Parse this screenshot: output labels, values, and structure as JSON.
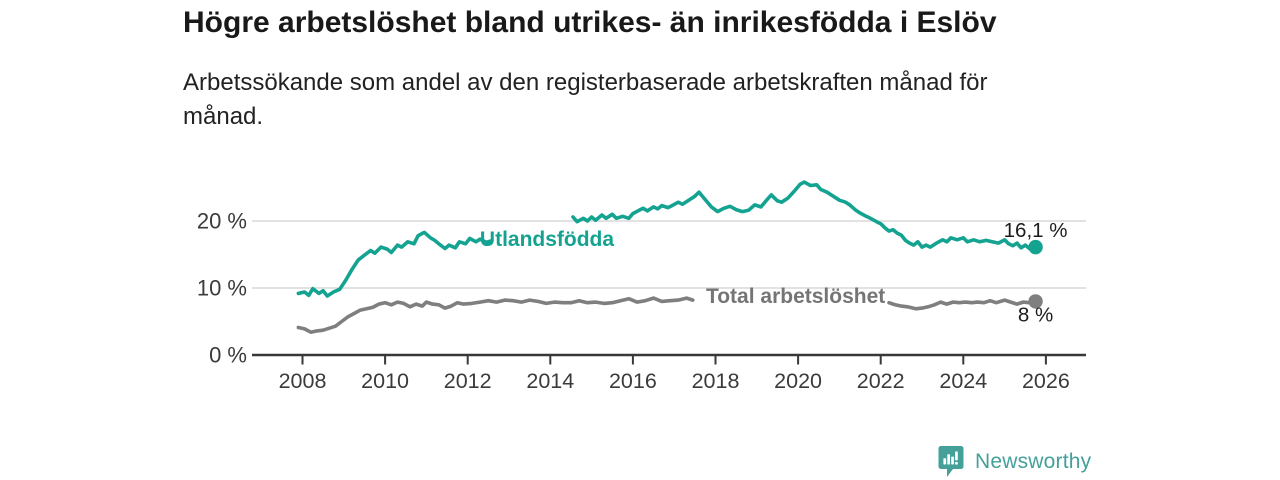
{
  "header": {
    "title": "Högre arbetslöshet bland utrikes- än inrikesfödda i Eslöv",
    "subtitle": "Arbetssökande som andel av den registerbaserade arbetskraften månad för månad."
  },
  "chart_data": {
    "type": "line",
    "title": "Högre arbetslöshet bland utrikes- än inrikesfödda i Eslöv",
    "xlabel": "",
    "ylabel": "",
    "xlim": [
      2006.8,
      2027.0
    ],
    "ylim": [
      0,
      27
    ],
    "grid": "horizontal",
    "legend_position": "inline-labels-on-lines",
    "x_axis": {
      "ticks": [
        2008,
        2010,
        2012,
        2014,
        2016,
        2018,
        2020,
        2022,
        2024,
        2026
      ]
    },
    "y_axis": {
      "ticks": [
        {
          "value": 0,
          "label": "0 %"
        },
        {
          "value": 10,
          "label": "10 %"
        },
        {
          "value": 20,
          "label": "20 %"
        }
      ]
    },
    "style": {
      "grid_color": "#d9d9d9",
      "axis_color": "#383838",
      "axis_text_color": "#3b3b3b",
      "value_label_color": "#1c1c1c",
      "background": "#ffffff"
    },
    "series": [
      {
        "id": "utlandsfodda",
        "name": "Utlandsfödda",
        "color": "#14a391",
        "end_value": 16.1,
        "end_label": "16,1 %",
        "end_label_position": "above",
        "label_anchor": {
          "year": 2013.92,
          "pct": 17.5
        },
        "segments": [
          [
            [
              2007.9,
              9.2
            ],
            [
              2008.05,
              9.4
            ],
            [
              2008.15,
              8.9
            ],
            [
              2008.25,
              9.9
            ],
            [
              2008.4,
              9.2
            ],
            [
              2008.5,
              9.6
            ],
            [
              2008.6,
              8.8
            ],
            [
              2008.75,
              9.4
            ],
            [
              2008.9,
              9.8
            ],
            [
              2009.05,
              11.2
            ],
            [
              2009.2,
              12.8
            ],
            [
              2009.35,
              14.2
            ],
            [
              2009.5,
              14.9
            ],
            [
              2009.65,
              15.6
            ],
            [
              2009.75,
              15.2
            ],
            [
              2009.9,
              16.1
            ],
            [
              2010.05,
              15.8
            ],
            [
              2010.15,
              15.3
            ],
            [
              2010.3,
              16.4
            ],
            [
              2010.4,
              16.1
            ],
            [
              2010.55,
              16.9
            ],
            [
              2010.7,
              16.6
            ],
            [
              2010.8,
              17.8
            ],
            [
              2010.95,
              18.3
            ],
            [
              2011.1,
              17.5
            ],
            [
              2011.2,
              17.1
            ],
            [
              2011.3,
              16.6
            ],
            [
              2011.45,
              15.9
            ],
            [
              2011.55,
              16.4
            ],
            [
              2011.7,
              16.0
            ],
            [
              2011.8,
              16.9
            ],
            [
              2011.95,
              16.6
            ],
            [
              2012.05,
              17.4
            ],
            [
              2012.2,
              16.9
            ],
            [
              2012.3,
              17.3
            ],
            [
              2012.45,
              16.8
            ],
            [
              2012.55,
              17.0
            ]
          ],
          [
            [
              2014.55,
              20.6
            ],
            [
              2014.65,
              19.9
            ],
            [
              2014.8,
              20.4
            ],
            [
              2014.9,
              20.0
            ],
            [
              2015.0,
              20.6
            ],
            [
              2015.1,
              20.1
            ],
            [
              2015.25,
              20.9
            ],
            [
              2015.35,
              20.4
            ],
            [
              2015.5,
              21.0
            ],
            [
              2015.6,
              20.4
            ],
            [
              2015.75,
              20.7
            ],
            [
              2015.9,
              20.4
            ],
            [
              2016.0,
              21.1
            ],
            [
              2016.15,
              21.6
            ],
            [
              2016.25,
              21.9
            ],
            [
              2016.35,
              21.5
            ],
            [
              2016.5,
              22.1
            ],
            [
              2016.6,
              21.8
            ],
            [
              2016.7,
              22.3
            ],
            [
              2016.85,
              22.0
            ],
            [
              2016.95,
              22.3
            ],
            [
              2017.1,
              22.8
            ],
            [
              2017.2,
              22.5
            ],
            [
              2017.35,
              23.1
            ],
            [
              2017.5,
              23.7
            ],
            [
              2017.6,
              24.3
            ],
            [
              2017.75,
              23.2
            ],
            [
              2017.9,
              22.1
            ],
            [
              2018.05,
              21.4
            ],
            [
              2018.2,
              21.9
            ],
            [
              2018.35,
              22.2
            ],
            [
              2018.5,
              21.7
            ],
            [
              2018.65,
              21.4
            ],
            [
              2018.8,
              21.6
            ],
            [
              2018.95,
              22.4
            ],
            [
              2019.1,
              22.1
            ],
            [
              2019.25,
              23.2
            ],
            [
              2019.35,
              23.9
            ],
            [
              2019.5,
              23.0
            ],
            [
              2019.6,
              22.8
            ],
            [
              2019.75,
              23.4
            ],
            [
              2019.9,
              24.4
            ],
            [
              2020.05,
              25.5
            ],
            [
              2020.15,
              25.8
            ],
            [
              2020.3,
              25.3
            ],
            [
              2020.45,
              25.4
            ],
            [
              2020.55,
              24.7
            ],
            [
              2020.7,
              24.3
            ],
            [
              2020.85,
              23.7
            ],
            [
              2021.0,
              23.1
            ],
            [
              2021.15,
              22.8
            ],
            [
              2021.25,
              22.4
            ],
            [
              2021.4,
              21.6
            ],
            [
              2021.5,
              21.2
            ],
            [
              2021.65,
              20.7
            ],
            [
              2021.75,
              20.4
            ],
            [
              2021.9,
              19.9
            ],
            [
              2022.0,
              19.6
            ],
            [
              2022.1,
              19.0
            ],
            [
              2022.2,
              18.5
            ],
            [
              2022.3,
              18.7
            ],
            [
              2022.4,
              18.2
            ],
            [
              2022.5,
              17.9
            ],
            [
              2022.6,
              17.1
            ],
            [
              2022.7,
              16.7
            ],
            [
              2022.8,
              16.4
            ],
            [
              2022.9,
              16.9
            ],
            [
              2023.0,
              16.1
            ],
            [
              2023.1,
              16.4
            ],
            [
              2023.2,
              16.1
            ],
            [
              2023.35,
              16.7
            ],
            [
              2023.5,
              17.2
            ],
            [
              2023.6,
              16.9
            ],
            [
              2023.7,
              17.5
            ],
            [
              2023.85,
              17.2
            ],
            [
              2024.0,
              17.5
            ],
            [
              2024.1,
              16.9
            ],
            [
              2024.25,
              17.2
            ],
            [
              2024.4,
              16.9
            ],
            [
              2024.55,
              17.1
            ],
            [
              2024.7,
              16.9
            ],
            [
              2024.85,
              16.7
            ],
            [
              2025.0,
              17.2
            ],
            [
              2025.1,
              16.6
            ],
            [
              2025.2,
              16.3
            ],
            [
              2025.3,
              16.7
            ],
            [
              2025.4,
              16.0
            ],
            [
              2025.5,
              16.4
            ],
            [
              2025.6,
              15.9
            ],
            [
              2025.7,
              16.3
            ],
            [
              2025.75,
              16.1
            ]
          ]
        ]
      },
      {
        "id": "total",
        "name": "Total arbetslöshet",
        "color": "#7f7f7f",
        "label_color": "#757575",
        "end_value": 8,
        "end_label": "8 %",
        "end_label_position": "below",
        "label_anchor": {
          "year": 2019.94,
          "pct": 8.95
        },
        "segments": [
          [
            [
              2007.9,
              4.1
            ],
            [
              2008.05,
              3.9
            ],
            [
              2008.2,
              3.4
            ],
            [
              2008.35,
              3.6
            ],
            [
              2008.5,
              3.7
            ],
            [
              2008.65,
              4.0
            ],
            [
              2008.8,
              4.3
            ],
            [
              2008.95,
              5.0
            ],
            [
              2009.1,
              5.7
            ],
            [
              2009.25,
              6.2
            ],
            [
              2009.4,
              6.7
            ],
            [
              2009.55,
              6.9
            ],
            [
              2009.7,
              7.1
            ],
            [
              2009.85,
              7.6
            ],
            [
              2010.0,
              7.8
            ],
            [
              2010.15,
              7.5
            ],
            [
              2010.3,
              7.9
            ],
            [
              2010.45,
              7.7
            ],
            [
              2010.6,
              7.2
            ],
            [
              2010.75,
              7.6
            ],
            [
              2010.9,
              7.3
            ],
            [
              2011.0,
              7.9
            ],
            [
              2011.15,
              7.6
            ],
            [
              2011.3,
              7.5
            ],
            [
              2011.45,
              7.0
            ],
            [
              2011.6,
              7.3
            ],
            [
              2011.75,
              7.8
            ],
            [
              2011.9,
              7.6
            ],
            [
              2012.1,
              7.7
            ],
            [
              2012.3,
              7.9
            ],
            [
              2012.5,
              8.1
            ],
            [
              2012.7,
              7.9
            ],
            [
              2012.9,
              8.2
            ],
            [
              2013.1,
              8.1
            ],
            [
              2013.3,
              7.9
            ],
            [
              2013.5,
              8.2
            ],
            [
              2013.7,
              8.0
            ],
            [
              2013.9,
              7.7
            ],
            [
              2014.1,
              7.9
            ],
            [
              2014.3,
              7.8
            ],
            [
              2014.5,
              7.8
            ],
            [
              2014.7,
              8.1
            ],
            [
              2014.9,
              7.8
            ],
            [
              2015.1,
              7.9
            ],
            [
              2015.3,
              7.7
            ],
            [
              2015.5,
              7.8
            ],
            [
              2015.7,
              8.1
            ],
            [
              2015.9,
              8.4
            ],
            [
              2016.1,
              7.9
            ],
            [
              2016.3,
              8.1
            ],
            [
              2016.5,
              8.5
            ],
            [
              2016.7,
              8.0
            ],
            [
              2016.9,
              8.1
            ],
            [
              2017.1,
              8.2
            ],
            [
              2017.3,
              8.5
            ],
            [
              2017.45,
              8.2
            ]
          ],
          [
            [
              2022.2,
              7.8
            ],
            [
              2022.35,
              7.5
            ],
            [
              2022.5,
              7.3
            ],
            [
              2022.65,
              7.2
            ],
            [
              2022.85,
              6.9
            ],
            [
              2023.0,
              7.0
            ],
            [
              2023.15,
              7.2
            ],
            [
              2023.3,
              7.5
            ],
            [
              2023.45,
              7.9
            ],
            [
              2023.6,
              7.6
            ],
            [
              2023.75,
              7.9
            ],
            [
              2023.9,
              7.8
            ],
            [
              2024.05,
              7.9
            ],
            [
              2024.2,
              7.8
            ],
            [
              2024.35,
              7.9
            ],
            [
              2024.5,
              7.8
            ],
            [
              2024.65,
              8.1
            ],
            [
              2024.8,
              7.8
            ],
            [
              2025.0,
              8.2
            ],
            [
              2025.15,
              7.9
            ],
            [
              2025.3,
              7.6
            ],
            [
              2025.45,
              7.9
            ],
            [
              2025.6,
              7.8
            ],
            [
              2025.75,
              8.0
            ]
          ]
        ]
      }
    ]
  },
  "footer": {
    "brand": "Newsworthy",
    "brand_color": "#45a09a",
    "logo_icon": "bar-chart-speech-bubble"
  }
}
